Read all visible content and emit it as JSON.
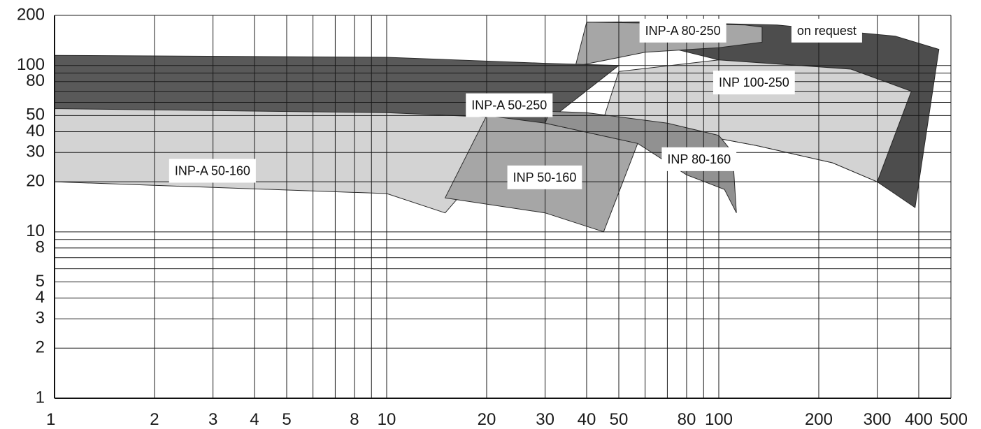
{
  "chart_data": {
    "type": "area",
    "title": "",
    "xlabel": "",
    "ylabel": "",
    "x_scale": "log",
    "y_scale": "log",
    "xlim": [
      1,
      500
    ],
    "ylim": [
      1,
      200
    ],
    "grid": true,
    "legend": "none",
    "x_ticks": [
      {
        "value": 1,
        "label": "1"
      },
      {
        "value": 2,
        "label": "2"
      },
      {
        "value": 3,
        "label": "3"
      },
      {
        "value": 4,
        "label": "4"
      },
      {
        "value": 5,
        "label": "5"
      },
      {
        "value": 8,
        "label": "8"
      },
      {
        "value": 10,
        "label": "10"
      },
      {
        "value": 20,
        "label": "20"
      },
      {
        "value": 30,
        "label": "30"
      },
      {
        "value": 40,
        "label": "40"
      },
      {
        "value": 50,
        "label": "50"
      },
      {
        "value": 80,
        "label": "80"
      },
      {
        "value": 100,
        "label": "100"
      },
      {
        "value": 200,
        "label": "200"
      },
      {
        "value": 300,
        "label": "300"
      },
      {
        "value": 400,
        "label": "400"
      },
      {
        "value": 500,
        "label": "500"
      }
    ],
    "y_ticks": [
      {
        "value": 1,
        "label": "1"
      },
      {
        "value": 2,
        "label": "2"
      },
      {
        "value": 3,
        "label": "3"
      },
      {
        "value": 4,
        "label": "4"
      },
      {
        "value": 5,
        "label": "5"
      },
      {
        "value": 8,
        "label": "8"
      },
      {
        "value": 10,
        "label": "10"
      },
      {
        "value": 20,
        "label": "20"
      },
      {
        "value": 30,
        "label": "30"
      },
      {
        "value": 40,
        "label": "40"
      },
      {
        "value": 50,
        "label": "50"
      },
      {
        "value": 80,
        "label": "80"
      },
      {
        "value": 100,
        "label": "100"
      },
      {
        "value": 200,
        "label": "200"
      }
    ],
    "x_grid": [
      1,
      2,
      3,
      4,
      5,
      6,
      7,
      8,
      9,
      10,
      20,
      30,
      40,
      50,
      60,
      70,
      80,
      90,
      100,
      200,
      300,
      400,
      500
    ],
    "y_grid": [
      1,
      2,
      3,
      4,
      5,
      6,
      7,
      8,
      9,
      10,
      20,
      30,
      40,
      50,
      60,
      70,
      80,
      90,
      100,
      200
    ],
    "series": [
      {
        "name": "on request",
        "color": "#4d4d4d",
        "label_at": [
          172,
          160
        ],
        "points": [
          [
            45,
            48
          ],
          [
            60,
            46
          ],
          [
            100,
            41
          ],
          [
            150,
            36
          ],
          [
            220,
            27
          ],
          [
            300,
            20
          ],
          [
            390,
            14
          ],
          [
            460,
            125
          ],
          [
            340,
            150
          ],
          [
            150,
            175
          ],
          [
            60,
            183
          ],
          [
            40,
            182
          ],
          [
            40,
            170
          ],
          [
            100,
            108
          ],
          [
            250,
            95
          ],
          [
            380,
            70
          ],
          [
            300,
            20
          ],
          [
            220,
            26
          ],
          [
            130,
            33
          ],
          [
            60,
            44
          ]
        ]
      },
      {
        "name": "INP-A 80-250",
        "color": "#a6a6a6",
        "label_at": [
          60,
          160
        ],
        "points": [
          [
            37,
            99
          ],
          [
            40,
            182
          ],
          [
            70,
            179
          ],
          [
            120,
            175
          ],
          [
            135,
            170
          ],
          [
            135,
            138
          ],
          [
            100,
            128
          ],
          [
            60,
            120
          ]
        ]
      },
      {
        "name": "INP 100-250",
        "color": "#d3d3d3",
        "label_at": [
          100,
          78
        ],
        "points": [
          [
            45,
            48
          ],
          [
            50,
            92
          ],
          [
            100,
            108
          ],
          [
            250,
            95
          ],
          [
            380,
            70
          ],
          [
            300,
            20
          ],
          [
            220,
            26
          ],
          [
            130,
            33
          ],
          [
            60,
            44
          ]
        ]
      },
      {
        "name": "INP-A 50-250",
        "color": "#595959",
        "label_at": [
          18,
          57
        ],
        "points": [
          [
            1,
            115
          ],
          [
            10,
            112
          ],
          [
            30,
            103
          ],
          [
            50,
            100
          ],
          [
            30,
            45
          ],
          [
            10,
            50
          ],
          [
            1,
            55
          ]
        ]
      },
      {
        "name": "INP-A 50-160",
        "color": "#d3d3d3",
        "label_at": [
          2.3,
          23
        ],
        "points": [
          [
            1,
            55
          ],
          [
            10,
            52
          ],
          [
            20,
            49
          ],
          [
            25,
            42
          ],
          [
            15,
            13
          ],
          [
            10,
            17
          ],
          [
            1,
            20
          ]
        ]
      },
      {
        "name": "INP 50-160",
        "color": "#a6a6a6",
        "label_at": [
          24,
          21
        ],
        "points": [
          [
            15,
            16
          ],
          [
            20,
            50
          ],
          [
            30,
            45
          ],
          [
            57,
            34
          ],
          [
            45,
            10
          ],
          [
            30,
            13
          ],
          [
            15,
            16
          ]
        ]
      },
      {
        "name": "INP 80-160",
        "color": "#919191",
        "label_at": [
          70,
          27
        ],
        "points": [
          [
            31,
            53
          ],
          [
            40,
            52
          ],
          [
            70,
            45
          ],
          [
            100,
            38
          ],
          [
            110,
            30
          ],
          [
            113,
            13
          ],
          [
            104,
            18
          ],
          [
            80,
            22
          ],
          [
            57,
            34
          ],
          [
            30,
            45
          ]
        ]
      }
    ]
  }
}
